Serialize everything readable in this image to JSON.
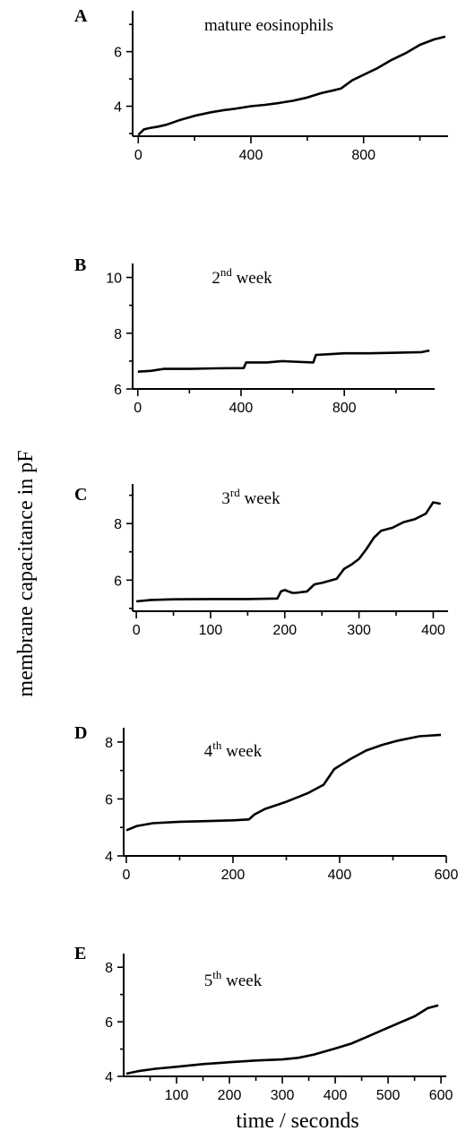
{
  "figure": {
    "ylabel": "membrane capacitance in pF",
    "xlabel": "time / seconds"
  },
  "chart_data": [
    {
      "type": "line",
      "panel": "A",
      "title": "mature eosinophils",
      "title_sup": "",
      "title_rest": "",
      "xlim": [
        -20,
        1100
      ],
      "ylim": [
        2.9,
        7.5
      ],
      "xticks_major": [
        0,
        400,
        800
      ],
      "xticks_minor": [
        200,
        600,
        1000
      ],
      "yticks_major": [
        4,
        6
      ],
      "yticks_minor": [
        3,
        5,
        7
      ],
      "x": [
        0,
        20,
        40,
        70,
        100,
        150,
        200,
        260,
        300,
        350,
        400,
        450,
        500,
        550,
        600,
        650,
        700,
        720,
        760,
        800,
        850,
        900,
        950,
        1000,
        1050,
        1090
      ],
      "y": [
        2.95,
        3.15,
        3.2,
        3.25,
        3.32,
        3.5,
        3.65,
        3.78,
        3.85,
        3.92,
        4.0,
        4.05,
        4.12,
        4.2,
        4.32,
        4.48,
        4.6,
        4.65,
        4.95,
        5.15,
        5.4,
        5.7,
        5.95,
        6.25,
        6.45,
        6.55
      ]
    },
    {
      "type": "line",
      "panel": "B",
      "title": "2",
      "title_sup": "nd",
      "title_rest": " week",
      "xlim": [
        -20,
        1150
      ],
      "ylim": [
        6,
        10.5
      ],
      "xticks_major": [
        0,
        400,
        800
      ],
      "xticks_minor": [
        200,
        600,
        1000
      ],
      "yticks_major": [
        6,
        8,
        10
      ],
      "yticks_minor": [
        7,
        9
      ],
      "x": [
        0,
        50,
        100,
        200,
        300,
        410,
        420,
        500,
        560,
        600,
        680,
        690,
        750,
        800,
        900,
        1000,
        1100,
        1130
      ],
      "y": [
        6.62,
        6.65,
        6.72,
        6.72,
        6.74,
        6.75,
        6.95,
        6.95,
        7.0,
        6.98,
        6.95,
        7.22,
        7.25,
        7.28,
        7.28,
        7.3,
        7.32,
        7.38
      ]
    },
    {
      "type": "line",
      "panel": "C",
      "title": "3",
      "title_sup": "rd",
      "title_rest": " week",
      "xlim": [
        -5,
        420
      ],
      "ylim": [
        4.9,
        9.4
      ],
      "xticks_major": [
        0,
        100,
        200,
        300,
        400
      ],
      "xticks_minor": [
        50,
        150,
        250,
        350
      ],
      "yticks_major": [
        6,
        8
      ],
      "yticks_minor": [
        5,
        7,
        9
      ],
      "x": [
        0,
        20,
        50,
        100,
        150,
        190,
        195,
        200,
        205,
        210,
        215,
        230,
        240,
        250,
        270,
        280,
        290,
        300,
        310,
        320,
        330,
        345,
        360,
        375,
        390,
        400,
        410
      ],
      "y": [
        5.25,
        5.3,
        5.32,
        5.33,
        5.33,
        5.35,
        5.6,
        5.65,
        5.6,
        5.55,
        5.55,
        5.6,
        5.85,
        5.9,
        6.05,
        6.4,
        6.55,
        6.75,
        7.1,
        7.5,
        7.75,
        7.85,
        8.05,
        8.15,
        8.35,
        8.75,
        8.7
      ]
    },
    {
      "type": "line",
      "panel": "D",
      "title": "4",
      "title_sup": "th",
      "title_rest": " week",
      "xlim": [
        -5,
        600
      ],
      "ylim": [
        4,
        8.5
      ],
      "xticks_major": [
        0,
        200,
        400,
        600
      ],
      "xticks_minor": [
        100,
        300,
        500
      ],
      "yticks_major": [
        4,
        6,
        8
      ],
      "yticks_minor": [
        5,
        7
      ],
      "x": [
        0,
        20,
        50,
        100,
        150,
        200,
        230,
        240,
        260,
        300,
        340,
        370,
        390,
        420,
        450,
        480,
        510,
        550,
        590
      ],
      "y": [
        4.9,
        5.05,
        5.15,
        5.2,
        5.22,
        5.25,
        5.28,
        5.45,
        5.65,
        5.9,
        6.2,
        6.5,
        7.05,
        7.4,
        7.7,
        7.9,
        8.05,
        8.2,
        8.25
      ]
    },
    {
      "type": "line",
      "panel": "E",
      "title": "5",
      "title_sup": "th",
      "title_rest": " week",
      "xlim": [
        0,
        610
      ],
      "ylim": [
        4,
        8.5
      ],
      "xticks_major": [
        100,
        200,
        300,
        400,
        500,
        600
      ],
      "xticks_minor": [
        50,
        150,
        250,
        350,
        450,
        550
      ],
      "yticks_major": [
        4,
        6,
        8
      ],
      "yticks_minor": [
        5,
        7
      ],
      "x": [
        5,
        30,
        60,
        100,
        150,
        200,
        250,
        300,
        330,
        360,
        400,
        430,
        460,
        490,
        520,
        550,
        575,
        595
      ],
      "y": [
        4.1,
        4.2,
        4.28,
        4.35,
        4.45,
        4.52,
        4.58,
        4.62,
        4.68,
        4.8,
        5.02,
        5.2,
        5.45,
        5.7,
        5.95,
        6.2,
        6.5,
        6.6
      ]
    }
  ]
}
